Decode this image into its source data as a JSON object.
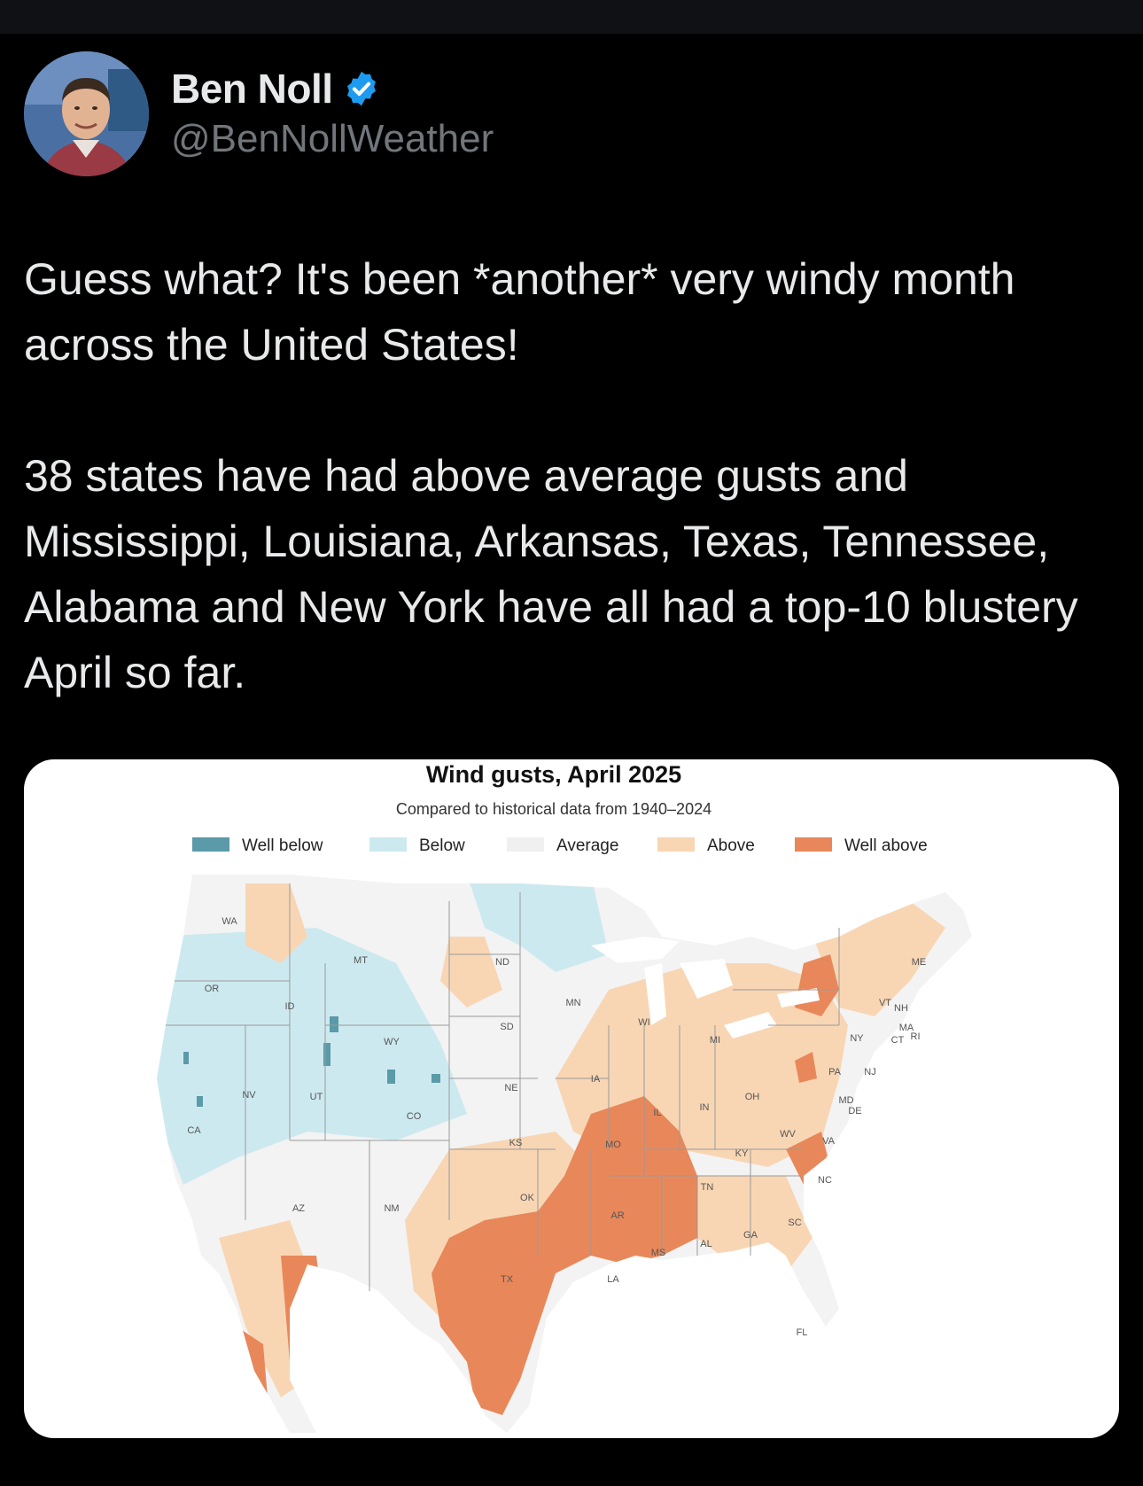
{
  "author": {
    "name": "Ben Noll",
    "handle": "@BenNollWeather",
    "verified_icon": "verified-badge-icon"
  },
  "tweet": {
    "text": "Guess what? It's been *another* very windy month across the United States!\n\n38 states have had above average gusts and Mississippi, Louisiana, Arkansas, Texas, Tennessee, Alabama and New York have all had a top-10 blustery April so far."
  },
  "map": {
    "title": "Wind gusts, April 2025",
    "subtitle": "Compared to historical data from 1940–2024",
    "legend": [
      {
        "label": "Well below",
        "color": "#5b9aa8"
      },
      {
        "label": "Below",
        "color": "#cde9f0"
      },
      {
        "label": "Average",
        "color": "#f0f0f0"
      },
      {
        "label": "Above",
        "color": "#f8d6b4"
      },
      {
        "label": "Well above",
        "color": "#e8885a"
      }
    ],
    "states": [
      "WA",
      "OR",
      "ID",
      "MT",
      "ND",
      "MN",
      "WI",
      "MI",
      "ME",
      "VT",
      "NH",
      "NY",
      "MA",
      "CT",
      "RI",
      "PA",
      "NJ",
      "OH",
      "IN",
      "IL",
      "IA",
      "SD",
      "NE",
      "WY",
      "NV",
      "CA",
      "UT",
      "CO",
      "KS",
      "MO",
      "KY",
      "WV",
      "MD",
      "DE",
      "VA",
      "NC",
      "TN",
      "AR",
      "OK",
      "AZ",
      "NM",
      "TX",
      "LA",
      "MS",
      "AL",
      "GA",
      "SC",
      "FL"
    ]
  }
}
